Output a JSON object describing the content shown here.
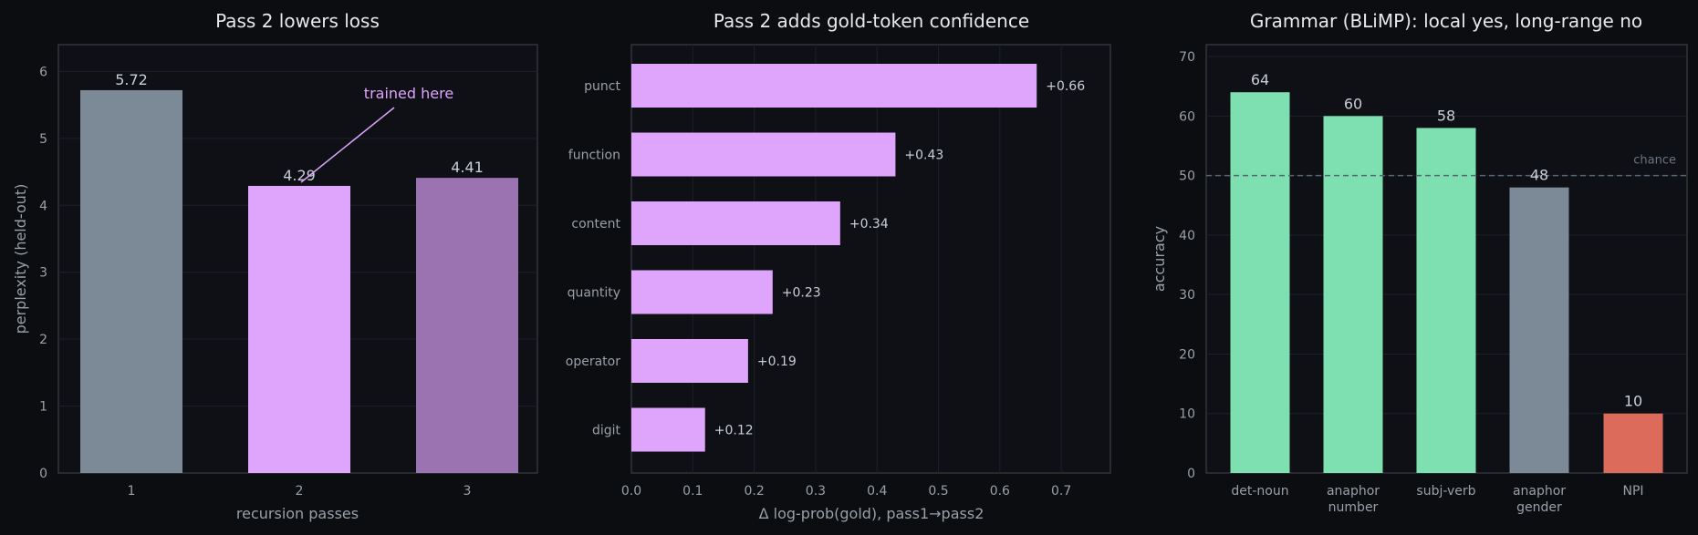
{
  "colors": {
    "background": "#0b0d11",
    "gray": "#7b8a96",
    "pink": "#dfa4fb",
    "purple": "#9b73b0",
    "green": "#7ee0b0",
    "red": "#dd6b5c",
    "chance_line": "#5a6470"
  },
  "chart_data": [
    {
      "type": "bar",
      "title": "Pass 2 lowers loss",
      "xlabel": "recursion passes",
      "ylabel": "perplexity (held-out)",
      "categories": [
        "1",
        "2",
        "3"
      ],
      "values": [
        5.72,
        4.29,
        4.41
      ],
      "value_labels": [
        "5.72",
        "4.29",
        "4.41"
      ],
      "bar_colors": [
        "gray",
        "pink",
        "purple"
      ],
      "ylim": [
        0,
        6.4
      ],
      "yticks": [
        0,
        1,
        2,
        3,
        4,
        5,
        6
      ],
      "annotation": {
        "text": "trained here",
        "target_category": "2"
      },
      "grid": "horizontal"
    },
    {
      "type": "bar",
      "orientation": "horizontal",
      "title": "Pass 2 adds gold-token confidence",
      "xlabel": "Δ log-prob(gold), pass1→pass2",
      "ylabel": "",
      "categories": [
        "punct",
        "function",
        "content",
        "quantity",
        "operator",
        "digit"
      ],
      "values": [
        0.66,
        0.43,
        0.34,
        0.23,
        0.19,
        0.12
      ],
      "value_labels": [
        "+0.66",
        "+0.43",
        "+0.34",
        "+0.23",
        "+0.19",
        "+0.12"
      ],
      "xlim": [
        0,
        0.78
      ],
      "xticks": [
        "0.0",
        "0.1",
        "0.2",
        "0.3",
        "0.4",
        "0.5",
        "0.6",
        "0.7"
      ],
      "grid": "vertical"
    },
    {
      "type": "bar",
      "title": "Grammar (BLiMP): local yes, long-range no",
      "xlabel": "",
      "ylabel": "accuracy",
      "categories": [
        [
          "det-noun"
        ],
        [
          "anaphor",
          "number"
        ],
        [
          "subj-verb"
        ],
        [
          "anaphor",
          "gender"
        ],
        [
          "NPI"
        ]
      ],
      "values": [
        64,
        60,
        58,
        48,
        10
      ],
      "value_labels": [
        "64",
        "60",
        "58",
        "48",
        "10"
      ],
      "bar_colors": [
        "green",
        "green",
        "green",
        "gray",
        "red"
      ],
      "ylim": [
        0,
        72
      ],
      "yticks": [
        0,
        10,
        20,
        30,
        40,
        50,
        60,
        70
      ],
      "reference_line": {
        "value": 50,
        "label": "chance"
      },
      "grid": "horizontal"
    }
  ]
}
